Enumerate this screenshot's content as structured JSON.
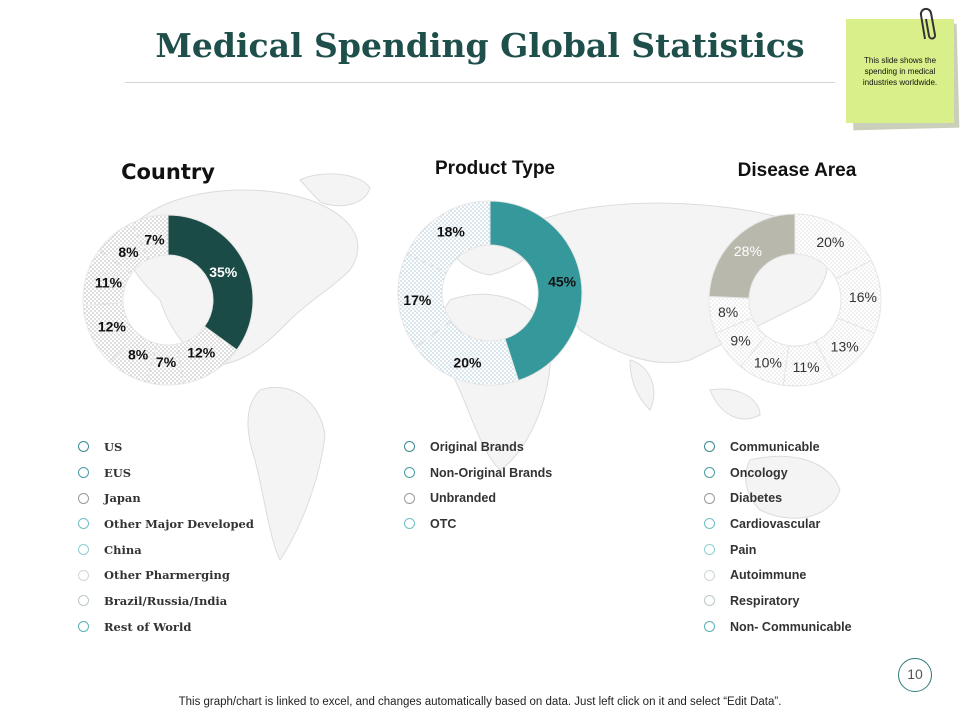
{
  "title": "Medical Spending Global Statistics",
  "note": "This slide shows the spending in medical industries worldwide.",
  "page_number": "10",
  "footer": "This graph/chart is linked to excel, and changes automatically based on data. Just left click on it and select “Edit Data”.",
  "colors": {
    "title": "#1e4f4b",
    "dark_teal": "#1b4b47",
    "teal": "#35999b",
    "gray": "#b9b8ad",
    "legend_dot": "#5ab0b4",
    "sticky": "#d8ef8a"
  },
  "chart_data": [
    {
      "type": "pie",
      "title": "Country",
      "categories": [
        "US",
        "EUS",
        "Japan",
        "Other  Major Developed",
        "China",
        "Other Pharmerging",
        "Brazil/Russia/India",
        "Rest of World"
      ],
      "values": [
        35,
        12,
        7,
        8,
        12,
        11,
        8,
        7
      ],
      "labels": [
        "35%",
        "12%",
        "7%",
        "8%",
        "12%",
        "11%",
        "8%",
        "7%"
      ],
      "highlight": "US"
    },
    {
      "type": "pie",
      "title": "Product Type",
      "categories": [
        "Original Brands",
        "Non-Original Brands",
        "Unbranded",
        "OTC"
      ],
      "values": [
        45,
        20,
        17,
        18
      ],
      "labels": [
        "45%",
        "20%",
        "17%",
        "18%"
      ],
      "highlight": "Original Brands"
    },
    {
      "type": "pie",
      "title": "Disease Area",
      "categories": [
        "Communicable",
        "Oncology",
        "Diabetes",
        "Cardiovascular",
        "Pain",
        "Autoimmune",
        "Respiratory",
        "Non- Communicable"
      ],
      "values": [
        20,
        16,
        13,
        11,
        10,
        9,
        8,
        28
      ],
      "labels": [
        "20%",
        "16%",
        "13%",
        "11%",
        "10%",
        "9%",
        "8%",
        "28%"
      ],
      "highlight": "Non- Communicable"
    }
  ]
}
